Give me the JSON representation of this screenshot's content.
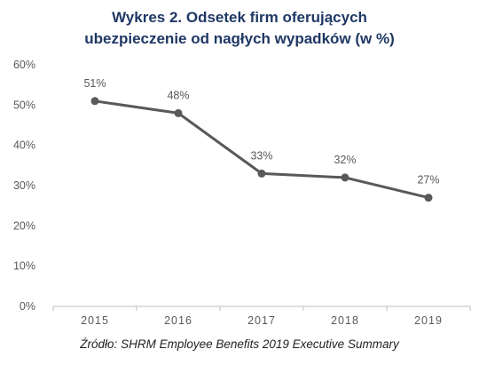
{
  "title_line1": "Wykres 2. Odsetek firm oferujących",
  "title_line2": "ubezpieczenie od nagłych wypadków (w %)",
  "source": "Źródło: SHRM Employee Benefits 2019 Executive Summary",
  "colors": {
    "title": "#1f3864",
    "line": "#595959",
    "axis": "#bfbfbf",
    "label": "#595959"
  },
  "chart_data": {
    "type": "line",
    "title": "Wykres 2. Odsetek firm oferujących ubezpieczenie od nagłych wypadków (w %)",
    "categories": [
      "2015",
      "2016",
      "2017",
      "2018",
      "2019"
    ],
    "values": [
      51,
      48,
      33,
      32,
      27
    ],
    "data_labels": [
      "51%",
      "48%",
      "33%",
      "32%",
      "27%"
    ],
    "y_ticks": [
      "0%",
      "10%",
      "20%",
      "30%",
      "40%",
      "50%",
      "60%"
    ],
    "ylim": [
      0,
      60
    ],
    "grid": false,
    "legend": "none"
  }
}
